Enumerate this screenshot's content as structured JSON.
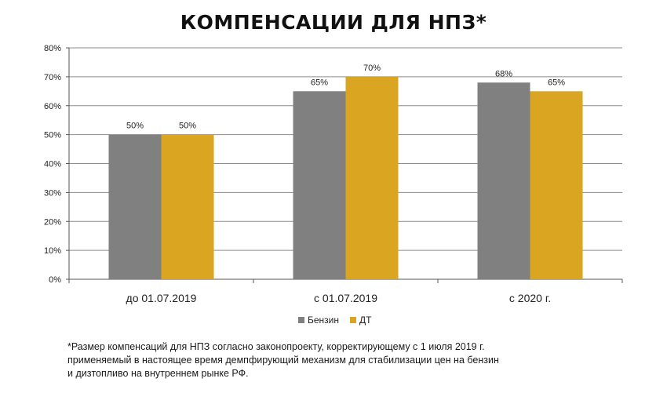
{
  "chart_data": {
    "type": "bar",
    "title": "КОМПЕНСАЦИИ ДЛЯ НПЗ*",
    "categories": [
      "до 01.07.2019",
      "с 01.07.2019",
      "с 2020 г."
    ],
    "series": [
      {
        "name": "Бензин",
        "values": [
          50,
          65,
          68
        ],
        "labels": [
          "50%",
          "65%",
          "68%"
        ],
        "color": "#808080"
      },
      {
        "name": "ДТ",
        "values": [
          50,
          70,
          65
        ],
        "labels": [
          "50%",
          "70%",
          "65%"
        ],
        "color": "#DAA520"
      }
    ],
    "ylim": [
      0,
      80
    ],
    "yticks": [
      "0%",
      "10%",
      "20%",
      "30%",
      "40%",
      "50%",
      "60%",
      "70%",
      "80%"
    ],
    "grid": true,
    "legend": "bottom",
    "xlabel": "",
    "ylabel": ""
  },
  "footnote": [
    "*Размер компенсаций для НПЗ согласно законопроекту, корректирующему с 1 июля 2019 г.",
    "применяемый в настоящее время демпфирующий механизм для стабилизации цен на бензин",
    "и дизтопливо на внутреннем рынке РФ."
  ]
}
